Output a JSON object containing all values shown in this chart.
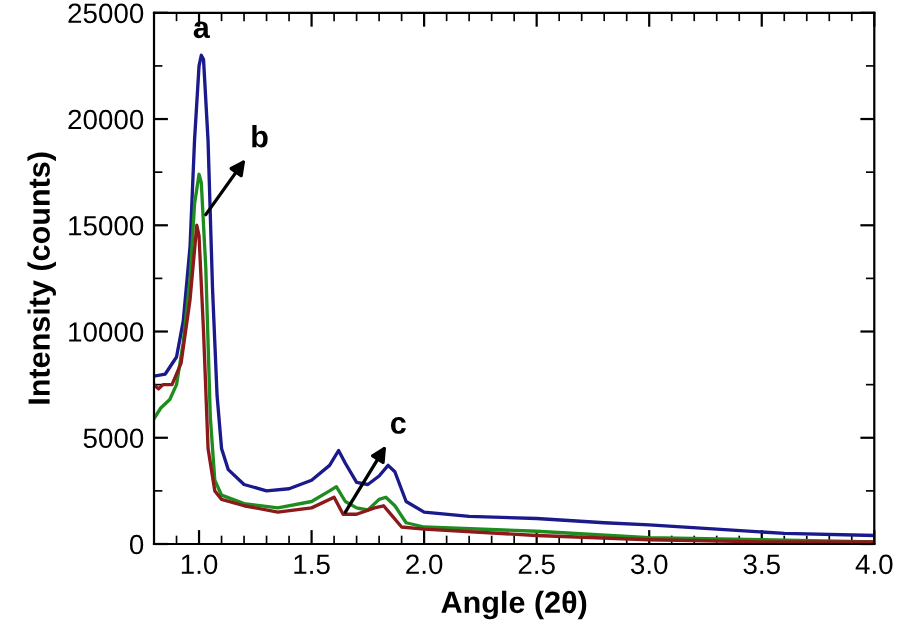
{
  "chart_data": {
    "type": "line",
    "xlabel": "Angle (2θ)",
    "ylabel": "Intensity (counts)",
    "xlim": [
      0.8,
      4.0
    ],
    "ylim": [
      0,
      25000
    ],
    "xticks": [
      {
        "value": 1,
        "label": "1.0"
      },
      1.5,
      {
        "value": 2,
        "label": "2.0"
      },
      2.5,
      {
        "value": 3,
        "label": "3.0"
      },
      3.5,
      {
        "value": 4,
        "label": "4.0"
      }
    ],
    "yticks": [
      0,
      5000,
      10000,
      15000,
      20000,
      25000
    ],
    "grid": false,
    "marker": "none",
    "line_style": "solid",
    "annotations": [
      {
        "text": "a",
        "x": 1.01,
        "y": 23000
      },
      {
        "text": "b",
        "x": 1.03,
        "y": 15500
      },
      {
        "text": "c",
        "x": 1.65,
        "y": 1500
      }
    ],
    "series": [
      {
        "color": "#1a1a8c",
        "x": [
          0.8,
          0.85,
          0.9,
          0.93,
          0.96,
          0.98,
          1.0,
          1.01,
          1.02,
          1.04,
          1.06,
          1.08,
          1.1,
          1.13,
          1.2,
          1.3,
          1.4,
          1.5,
          1.58,
          1.62,
          1.65,
          1.7,
          1.75,
          1.8,
          1.84,
          1.87,
          1.92,
          2.0,
          2.2,
          2.5,
          2.8,
          3.0,
          3.3,
          3.6,
          4.0
        ],
        "values": [
          7900,
          8000,
          8800,
          10500,
          14000,
          19000,
          22500,
          23000,
          22800,
          19000,
          12000,
          7000,
          4500,
          3500,
          2800,
          2500,
          2600,
          3000,
          3700,
          4400,
          3800,
          2900,
          2800,
          3200,
          3700,
          3400,
          2000,
          1500,
          1300,
          1200,
          1000,
          900,
          700,
          500,
          400
        ]
      },
      {
        "color": "#1e8c1e",
        "x": [
          0.8,
          0.83,
          0.87,
          0.9,
          0.93,
          0.96,
          0.98,
          1.0,
          1.01,
          1.03,
          1.05,
          1.07,
          1.1,
          1.2,
          1.35,
          1.5,
          1.58,
          1.61,
          1.65,
          1.7,
          1.75,
          1.8,
          1.83,
          1.87,
          1.92,
          2.0,
          2.5,
          3.0,
          3.5,
          4.0
        ],
        "values": [
          5900,
          6400,
          6800,
          7500,
          9500,
          12500,
          16000,
          17400,
          17000,
          13000,
          6000,
          3000,
          2300,
          1900,
          1700,
          2000,
          2500,
          2700,
          2000,
          1700,
          1600,
          2100,
          2200,
          1800,
          1000,
          800,
          600,
          300,
          200,
          100
        ]
      },
      {
        "color": "#8c1a1a",
        "x": [
          0.8,
          0.82,
          0.84,
          0.88,
          0.92,
          0.96,
          0.99,
          1.0,
          1.02,
          1.04,
          1.07,
          1.1,
          1.2,
          1.35,
          1.5,
          1.6,
          1.64,
          1.7,
          1.78,
          1.82,
          1.86,
          1.9,
          2.0,
          2.5,
          3.0,
          3.5,
          4.0
        ],
        "values": [
          7500,
          7300,
          7500,
          7500,
          8500,
          11500,
          15000,
          14500,
          10000,
          4500,
          2500,
          2100,
          1800,
          1500,
          1700,
          2200,
          1400,
          1400,
          1700,
          1800,
          1300,
          800,
          700,
          400,
          200,
          100,
          100
        ]
      }
    ]
  }
}
